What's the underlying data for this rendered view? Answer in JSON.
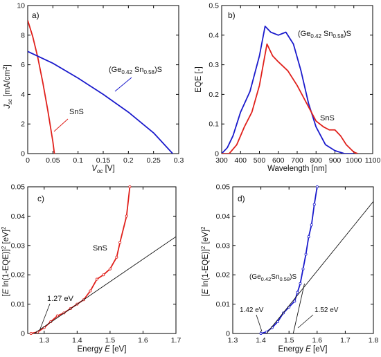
{
  "chart_data": [
    {
      "panel": "a)",
      "type": "line",
      "xlabel": "V_oc [V]",
      "ylabel": "J_sc [mA/cm^2]",
      "xlim": [
        0,
        0.3
      ],
      "ylim": [
        0,
        10
      ],
      "xticks": [
        0,
        0.05,
        0.1,
        0.15,
        0.2,
        0.25,
        0.3
      ],
      "yticks": [
        0,
        2,
        4,
        6,
        8,
        10
      ],
      "xtick_labels": [
        "0",
        "0.05",
        "0.1",
        "0.15",
        "0.2",
        "0.25",
        "0.3"
      ],
      "ytick_labels": [
        "0",
        "2",
        "4",
        "6",
        "8",
        "10"
      ],
      "series": [
        {
          "name": "SnS",
          "color": "#e0201b",
          "x": [
            0,
            0.01,
            0.02,
            0.03,
            0.04,
            0.05,
            0.053
          ],
          "y": [
            9.0,
            7.9,
            6.5,
            4.8,
            2.9,
            0.8,
            0
          ]
        },
        {
          "name": "(Ge0.42Sn0.58)S",
          "color": "#1a1acc",
          "x": [
            0,
            0.05,
            0.1,
            0.15,
            0.2,
            0.25,
            0.288
          ],
          "y": [
            6.9,
            6.1,
            5.1,
            4.0,
            2.8,
            1.4,
            0
          ]
        }
      ],
      "annotations": [
        {
          "text": "SnS",
          "color": "#e0201b"
        },
        {
          "text": "(Ge0.42Sn0.58)S",
          "color": "#1a1acc"
        }
      ]
    },
    {
      "panel": "b)",
      "type": "line",
      "xlabel": "Wavelength [nm]",
      "ylabel": "EQE [-]",
      "xlim": [
        300,
        1100
      ],
      "ylim": [
        0,
        0.5
      ],
      "xticks": [
        300,
        400,
        500,
        600,
        700,
        800,
        900,
        1000,
        1100
      ],
      "yticks": [
        0,
        0.1,
        0.2,
        0.3,
        0.4,
        0.5
      ],
      "xtick_labels": [
        "300",
        "400",
        "500",
        "600",
        "700",
        "800",
        "900",
        "1000",
        "1100"
      ],
      "ytick_labels": [
        "0",
        "0.1",
        "0.2",
        "0.3",
        "0.4",
        "0.5"
      ],
      "series": [
        {
          "name": "(Ge0.42Sn0.58)S",
          "color": "#1a1acc",
          "x": [
            300,
            330,
            360,
            400,
            450,
            500,
            530,
            560,
            600,
            640,
            680,
            720,
            760,
            800,
            850,
            900,
            950,
            1000
          ],
          "y": [
            0.0,
            0.02,
            0.06,
            0.14,
            0.21,
            0.33,
            0.43,
            0.41,
            0.4,
            0.41,
            0.37,
            0.28,
            0.17,
            0.09,
            0.03,
            0.01,
            0.0,
            0.0
          ]
        },
        {
          "name": "SnS",
          "color": "#e0201b",
          "x": [
            300,
            340,
            380,
            420,
            460,
            500,
            540,
            570,
            600,
            650,
            700,
            750,
            800,
            840,
            870,
            900,
            930,
            960,
            1000,
            1020
          ],
          "y": [
            0.0,
            0.0,
            0.03,
            0.09,
            0.14,
            0.23,
            0.37,
            0.33,
            0.31,
            0.28,
            0.23,
            0.17,
            0.11,
            0.09,
            0.08,
            0.08,
            0.06,
            0.03,
            0.005,
            0.0
          ]
        }
      ],
      "annotations": [
        {
          "text": "(Ge0.42Sn0.58)S",
          "color": "#1a1acc"
        },
        {
          "text": "SnS",
          "color": "#e0201b"
        }
      ]
    },
    {
      "panel": "c)",
      "type": "line",
      "xlabel": "Energy E [eV]",
      "ylabel": "[E ln(1-EQE)]^2 [eV]^2",
      "xlim": [
        1.25,
        1.7
      ],
      "ylim": [
        0,
        0.05
      ],
      "xticks": [
        1.3,
        1.4,
        1.5,
        1.6,
        1.7
      ],
      "yticks": [
        0,
        0.01,
        0.02,
        0.03,
        0.04,
        0.05
      ],
      "xtick_labels": [
        "1.3",
        "1.4",
        "1.5",
        "1.6",
        "1.7"
      ],
      "ytick_labels": [
        "0",
        "0.01",
        "0.02",
        "0.03",
        "0.04",
        "0.05"
      ],
      "series": [
        {
          "name": "SnS",
          "color": "#e0201b",
          "x": [
            1.26,
            1.28,
            1.3,
            1.32,
            1.34,
            1.36,
            1.38,
            1.4,
            1.42,
            1.44,
            1.46,
            1.48,
            1.5,
            1.52,
            1.53,
            1.55,
            1.56
          ],
          "y": [
            0.0,
            0.0005,
            0.002,
            0.004,
            0.006,
            0.007,
            0.0085,
            0.01,
            0.0115,
            0.0145,
            0.0185,
            0.02,
            0.022,
            0.026,
            0.031,
            0.04,
            0.05
          ]
        },
        {
          "name": "fit",
          "color": "#111111",
          "x": [
            1.27,
            1.7
          ],
          "y": [
            0.0,
            0.033
          ]
        }
      ],
      "annotations": [
        {
          "text": "SnS",
          "color": "#e0201b"
        },
        {
          "text": "1.27 eV",
          "color": "#111111"
        }
      ]
    },
    {
      "panel": "d)",
      "type": "line",
      "xlabel": "Energy E [eV]",
      "ylabel": "[E ln(1-EQE)]^2 [eV]^2",
      "xlim": [
        1.3,
        1.8
      ],
      "ylim": [
        0,
        0.05
      ],
      "xticks": [
        1.3,
        1.4,
        1.5,
        1.6,
        1.7,
        1.8
      ],
      "yticks": [
        0,
        0.01,
        0.02,
        0.03,
        0.04,
        0.05
      ],
      "xtick_labels": [
        "1.3",
        "1.4",
        "1.5",
        "1.6",
        "1.7",
        "1.8"
      ],
      "ytick_labels": [
        "0",
        "0.01",
        "0.02",
        "0.03",
        "0.04",
        "0.05"
      ],
      "series": [
        {
          "name": "(Ge0.42Sn0.58)S",
          "color": "#1a1acc",
          "x": [
            1.4,
            1.42,
            1.44,
            1.46,
            1.48,
            1.5,
            1.52,
            1.53,
            1.54,
            1.55,
            1.56,
            1.57,
            1.58,
            1.59,
            1.6
          ],
          "y": [
            0.0,
            0.0005,
            0.002,
            0.004,
            0.007,
            0.009,
            0.011,
            0.014,
            0.017,
            0.022,
            0.027,
            0.033,
            0.037,
            0.044,
            0.05
          ]
        },
        {
          "name": "fit1",
          "color": "#111111",
          "x": [
            1.42,
            1.8
          ],
          "y": [
            0.0,
            0.045
          ]
        },
        {
          "name": "fit2",
          "color": "#111111",
          "x": [
            1.515,
            1.555
          ],
          "y": [
            0.0,
            0.017
          ]
        }
      ],
      "annotations": [
        {
          "text": "(Ge0.42Sn0.58)S",
          "color": "#1a1acc"
        },
        {
          "text": "1.42 eV",
          "color": "#111111"
        },
        {
          "text": "1.52 eV",
          "color": "#111111"
        }
      ]
    }
  ]
}
